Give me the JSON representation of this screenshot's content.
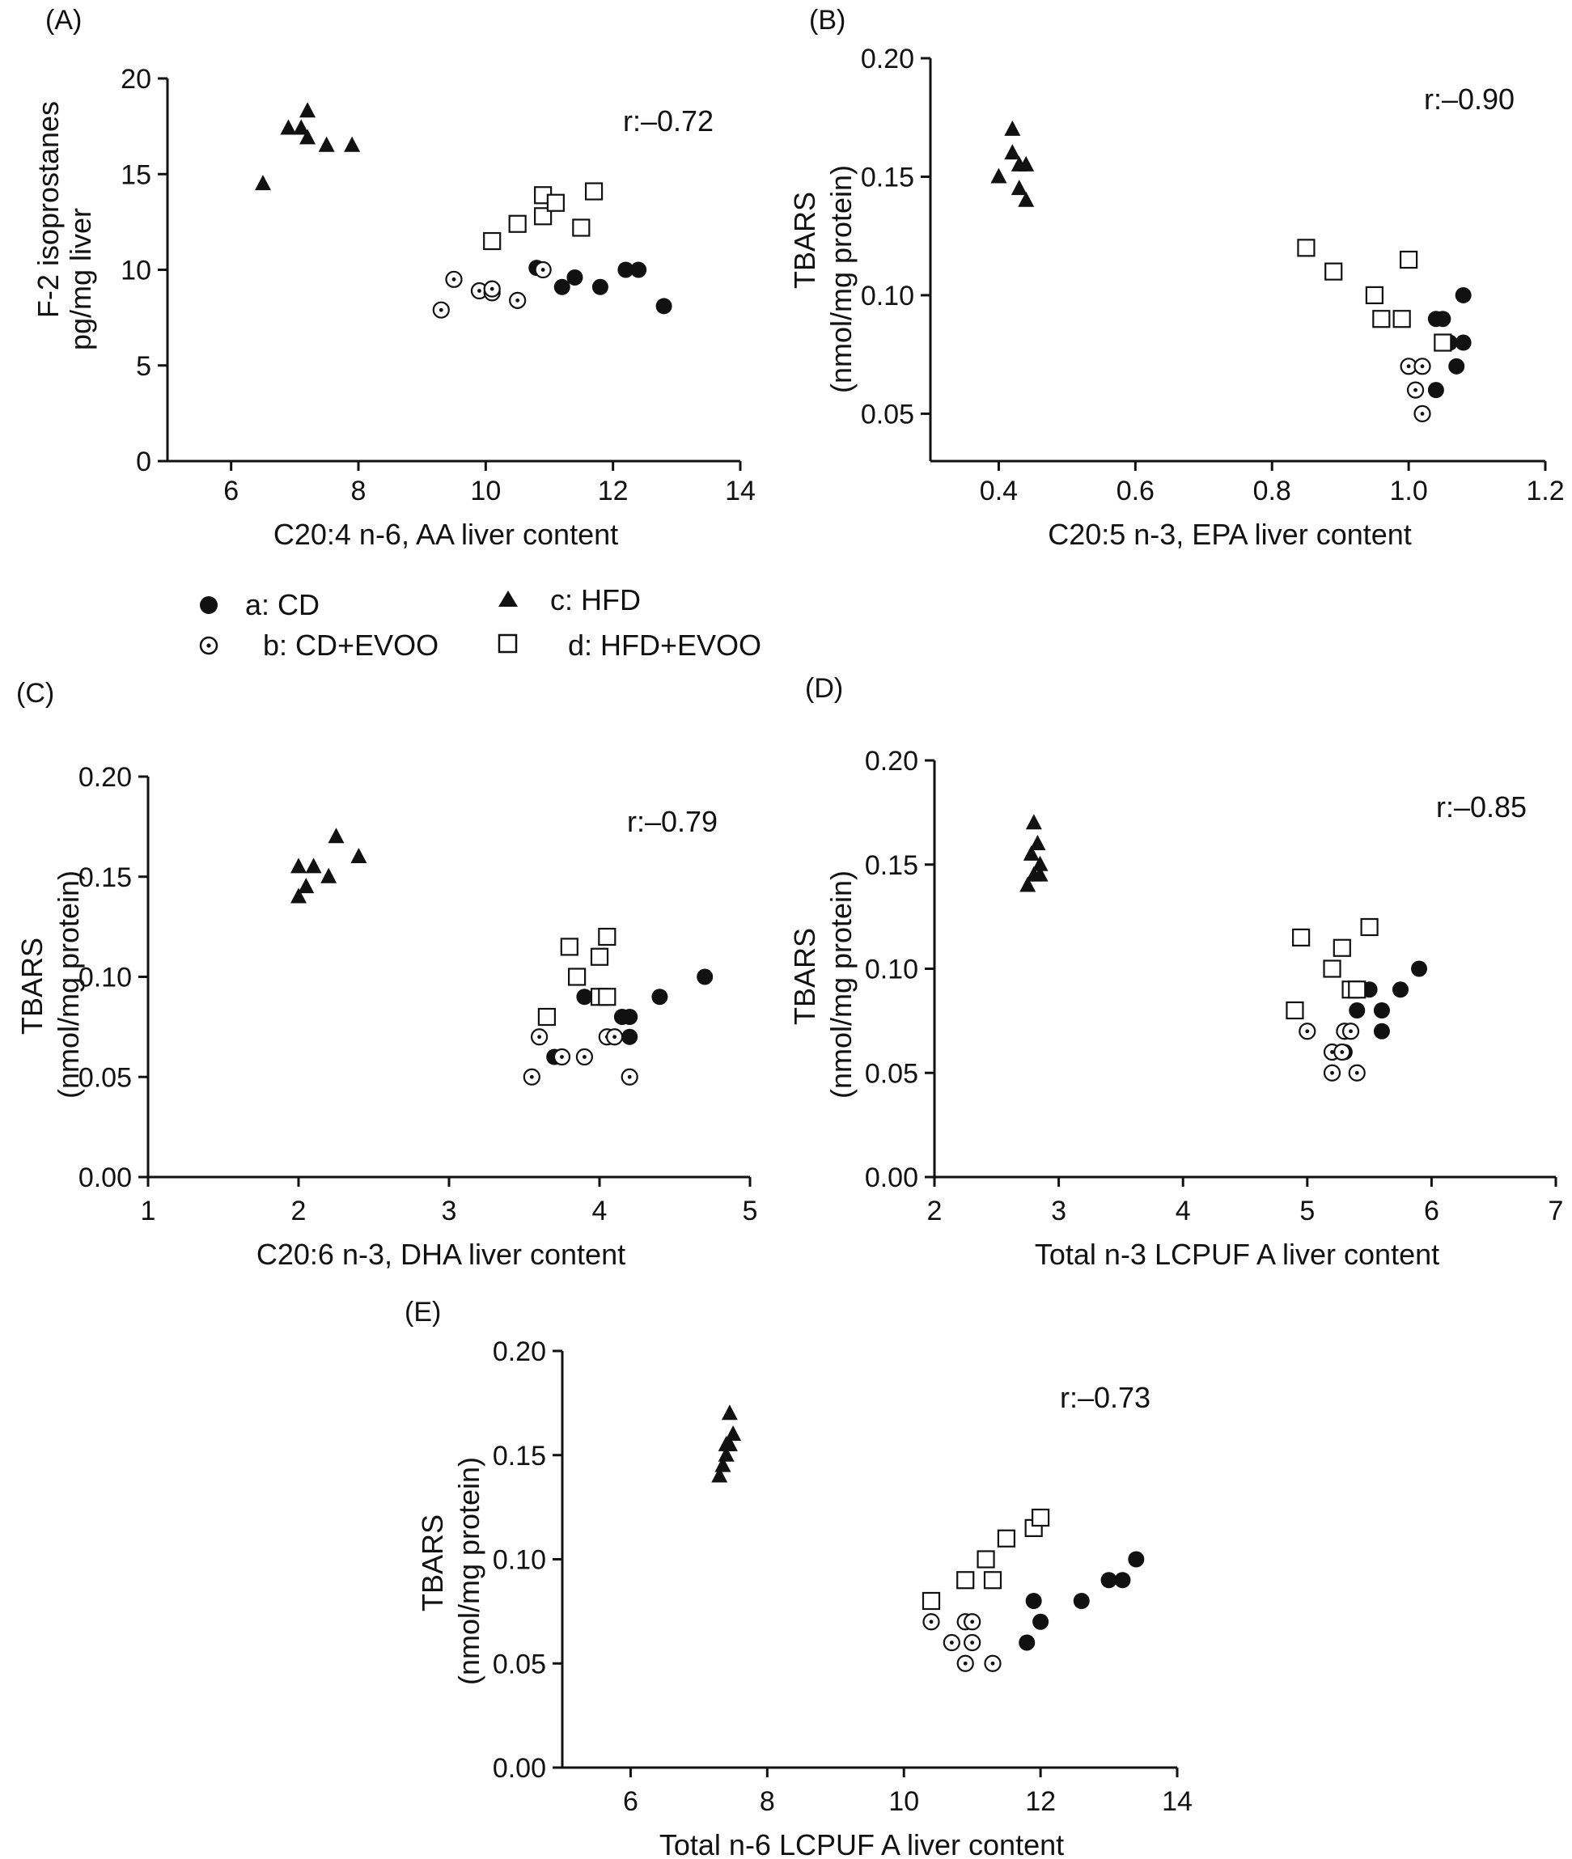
{
  "legend": [
    {
      "key": "a",
      "label": "a: CD",
      "marker": "filled-circle"
    },
    {
      "key": "b",
      "label": "b: CD+EVOO",
      "marker": "dotted-circle"
    },
    {
      "key": "c",
      "label": "c: HFD",
      "marker": "filled-triangle"
    },
    {
      "key": "d",
      "label": "d: HFD+EVOO",
      "marker": "open-square"
    }
  ],
  "colors": {
    "ink": "#111111",
    "background": "#ffffff"
  },
  "chart_data": [
    {
      "panel": "(A)",
      "type": "scatter",
      "xlabel": "C20:4 n-6, AA liver content",
      "ylabel": [
        "F-2 isoprostanes",
        "pg/mg liver"
      ],
      "annotation": "r:–0.72",
      "xlim": [
        5,
        14
      ],
      "ylim": [
        0,
        20
      ],
      "xticks": [
        6,
        8,
        10,
        12,
        14
      ],
      "yticks": [
        0,
        5,
        10,
        15,
        20
      ],
      "xtick_labels": [
        "6",
        "8",
        "10",
        "12",
        "14"
      ],
      "ytick_labels": [
        "0",
        "5",
        "10",
        "15",
        "20"
      ],
      "series": [
        {
          "group": "a",
          "points": [
            [
              10.8,
              10.1
            ],
            [
              11.2,
              9.1
            ],
            [
              11.4,
              9.6
            ],
            [
              11.8,
              9.1
            ],
            [
              12.2,
              10.0
            ],
            [
              12.4,
              10.0
            ],
            [
              12.8,
              8.1
            ]
          ]
        },
        {
          "group": "b",
          "points": [
            [
              9.3,
              7.9
            ],
            [
              9.5,
              9.5
            ],
            [
              9.9,
              8.9
            ],
            [
              10.1,
              8.8
            ],
            [
              10.1,
              9.0
            ],
            [
              10.5,
              8.4
            ],
            [
              10.9,
              10.0
            ]
          ]
        },
        {
          "group": "c",
          "points": [
            [
              6.5,
              14.5
            ],
            [
              6.9,
              17.4
            ],
            [
              7.1,
              17.4
            ],
            [
              7.2,
              18.3
            ],
            [
              7.2,
              16.9
            ],
            [
              7.5,
              16.5
            ],
            [
              7.9,
              16.5
            ]
          ]
        },
        {
          "group": "d",
          "points": [
            [
              10.1,
              11.5
            ],
            [
              10.5,
              12.4
            ],
            [
              10.9,
              12.8
            ],
            [
              10.9,
              13.9
            ],
            [
              11.1,
              13.5
            ],
            [
              11.5,
              12.2
            ],
            [
              11.7,
              14.1
            ]
          ]
        }
      ]
    },
    {
      "panel": "(B)",
      "type": "scatter",
      "xlabel": "C20:5 n-3, EPA liver content",
      "ylabel": [
        "TBARS",
        "(nmol/mg protein)"
      ],
      "annotation": "r:–0.90",
      "xlim": [
        0.3,
        1.2
      ],
      "ylim": [
        0.03,
        0.2
      ],
      "xticks": [
        0.4,
        0.6,
        0.8,
        1.0,
        1.2
      ],
      "yticks": [
        0.05,
        0.1,
        0.15,
        0.2
      ],
      "xtick_labels": [
        "0.4",
        "0.6",
        "0.8",
        "1.0",
        "1.2"
      ],
      "ytick_labels": [
        "0.05",
        "0.10",
        "0.15",
        "0.20"
      ],
      "series": [
        {
          "group": "a",
          "points": [
            [
              1.04,
              0.09
            ],
            [
              1.05,
              0.09
            ],
            [
              1.08,
              0.1
            ],
            [
              1.06,
              0.08
            ],
            [
              1.08,
              0.08
            ],
            [
              1.07,
              0.07
            ],
            [
              1.04,
              0.06
            ]
          ]
        },
        {
          "group": "b",
          "points": [
            [
              1.0,
              0.07
            ],
            [
              1.02,
              0.07
            ],
            [
              1.01,
              0.06
            ],
            [
              1.02,
              0.05
            ]
          ]
        },
        {
          "group": "c",
          "points": [
            [
              0.42,
              0.17
            ],
            [
              0.42,
              0.16
            ],
            [
              0.43,
              0.155
            ],
            [
              0.4,
              0.15
            ],
            [
              0.44,
              0.155
            ],
            [
              0.43,
              0.145
            ],
            [
              0.44,
              0.14
            ]
          ]
        },
        {
          "group": "d",
          "points": [
            [
              0.85,
              0.12
            ],
            [
              0.89,
              0.11
            ],
            [
              0.95,
              0.1
            ],
            [
              0.96,
              0.09
            ],
            [
              0.99,
              0.09
            ],
            [
              1.0,
              0.115
            ],
            [
              1.05,
              0.08
            ]
          ]
        }
      ]
    },
    {
      "panel": "(C)",
      "type": "scatter",
      "xlabel": "C20:6 n-3, DHA liver content",
      "ylabel": [
        "TBARS",
        "(nmol/mg protein)"
      ],
      "annotation": "r:–0.79",
      "xlim": [
        1,
        5
      ],
      "ylim": [
        0,
        0.2
      ],
      "xticks": [
        1,
        2,
        3,
        4,
        5
      ],
      "yticks": [
        0,
        0.05,
        0.1,
        0.15,
        0.2
      ],
      "xtick_labels": [
        "1",
        "2",
        "3",
        "4",
        "5"
      ],
      "ytick_labels": [
        "0.00",
        "0.05",
        "0.10",
        "0.15",
        "0.20"
      ],
      "series": [
        {
          "group": "a",
          "points": [
            [
              3.7,
              0.06
            ],
            [
              3.9,
              0.09
            ],
            [
              4.15,
              0.08
            ],
            [
              4.2,
              0.08
            ],
            [
              4.2,
              0.07
            ],
            [
              4.4,
              0.09
            ],
            [
              4.7,
              0.1
            ]
          ]
        },
        {
          "group": "b",
          "points": [
            [
              3.55,
              0.05
            ],
            [
              3.6,
              0.07
            ],
            [
              3.75,
              0.06
            ],
            [
              3.9,
              0.06
            ],
            [
              4.05,
              0.07
            ],
            [
              4.1,
              0.07
            ],
            [
              4.2,
              0.05
            ]
          ]
        },
        {
          "group": "c",
          "points": [
            [
              2.0,
              0.14
            ],
            [
              2.05,
              0.145
            ],
            [
              2.0,
              0.155
            ],
            [
              2.1,
              0.155
            ],
            [
              2.2,
              0.15
            ],
            [
              2.25,
              0.17
            ],
            [
              2.4,
              0.16
            ]
          ]
        },
        {
          "group": "d",
          "points": [
            [
              3.65,
              0.08
            ],
            [
              3.8,
              0.115
            ],
            [
              3.85,
              0.1
            ],
            [
              4.0,
              0.11
            ],
            [
              4.0,
              0.09
            ],
            [
              4.05,
              0.09
            ],
            [
              4.05,
              0.12
            ]
          ]
        }
      ]
    },
    {
      "panel": "(D)",
      "type": "scatter",
      "xlabel": "Total n-3 LCPUF A liver content",
      "ylabel": [
        "TBARS",
        "(nmol/mg protein)"
      ],
      "annotation": "r:–0.85",
      "xlim": [
        2,
        7
      ],
      "ylim": [
        0,
        0.2
      ],
      "xticks": [
        2,
        3,
        4,
        5,
        6,
        7
      ],
      "yticks": [
        0,
        0.05,
        0.1,
        0.15,
        0.2
      ],
      "xtick_labels": [
        "2",
        "3",
        "4",
        "5",
        "6",
        "7"
      ],
      "ytick_labels": [
        "0.00",
        "0.05",
        "0.10",
        "0.15",
        "0.20"
      ],
      "series": [
        {
          "group": "a",
          "points": [
            [
              5.3,
              0.06
            ],
            [
              5.4,
              0.08
            ],
            [
              5.5,
              0.09
            ],
            [
              5.6,
              0.08
            ],
            [
              5.6,
              0.07
            ],
            [
              5.75,
              0.09
            ],
            [
              5.9,
              0.1
            ]
          ]
        },
        {
          "group": "b",
          "points": [
            [
              5.0,
              0.07
            ],
            [
              5.2,
              0.06
            ],
            [
              5.2,
              0.05
            ],
            [
              5.3,
              0.07
            ],
            [
              5.35,
              0.07
            ],
            [
              5.4,
              0.05
            ],
            [
              5.28,
              0.06
            ]
          ]
        },
        {
          "group": "c",
          "points": [
            [
              2.75,
              0.14
            ],
            [
              2.8,
              0.145
            ],
            [
              2.85,
              0.15
            ],
            [
              2.78,
              0.155
            ],
            [
              2.83,
              0.16
            ],
            [
              2.8,
              0.17
            ],
            [
              2.85,
              0.145
            ]
          ]
        },
        {
          "group": "d",
          "points": [
            [
              4.9,
              0.08
            ],
            [
              4.95,
              0.115
            ],
            [
              5.2,
              0.1
            ],
            [
              5.28,
              0.11
            ],
            [
              5.35,
              0.09
            ],
            [
              5.4,
              0.09
            ],
            [
              5.5,
              0.12
            ]
          ]
        }
      ]
    },
    {
      "panel": "(E)",
      "type": "scatter",
      "xlabel": "Total n-6 LCPUF A liver content",
      "ylabel": [
        "TBARS",
        "(nmol/mg protein)"
      ],
      "annotation": "r:–0.73",
      "xlim": [
        5,
        14
      ],
      "ylim": [
        0,
        0.2
      ],
      "xticks": [
        6,
        8,
        10,
        12,
        14
      ],
      "yticks": [
        0,
        0.05,
        0.1,
        0.15,
        0.2
      ],
      "xtick_labels": [
        "6",
        "8",
        "10",
        "12",
        "14"
      ],
      "ytick_labels": [
        "0.00",
        "0.05",
        "0.10",
        "0.15",
        "0.20"
      ],
      "series": [
        {
          "group": "a",
          "points": [
            [
              11.8,
              0.06
            ],
            [
              11.9,
              0.08
            ],
            [
              12.0,
              0.07
            ],
            [
              12.6,
              0.08
            ],
            [
              13.0,
              0.09
            ],
            [
              13.2,
              0.09
            ],
            [
              13.4,
              0.1
            ]
          ]
        },
        {
          "group": "b",
          "points": [
            [
              10.4,
              0.07
            ],
            [
              10.7,
              0.06
            ],
            [
              10.9,
              0.07
            ],
            [
              11.0,
              0.07
            ],
            [
              10.9,
              0.05
            ],
            [
              11.0,
              0.06
            ],
            [
              11.3,
              0.05
            ]
          ]
        },
        {
          "group": "c",
          "points": [
            [
              7.3,
              0.14
            ],
            [
              7.35,
              0.145
            ],
            [
              7.4,
              0.15
            ],
            [
              7.45,
              0.155
            ],
            [
              7.5,
              0.16
            ],
            [
              7.45,
              0.17
            ],
            [
              7.4,
              0.155
            ]
          ]
        },
        {
          "group": "d",
          "points": [
            [
              10.4,
              0.08
            ],
            [
              10.9,
              0.09
            ],
            [
              11.2,
              0.1
            ],
            [
              11.3,
              0.09
            ],
            [
              11.5,
              0.11
            ],
            [
              11.9,
              0.115
            ],
            [
              12.0,
              0.12
            ]
          ]
        }
      ]
    }
  ]
}
